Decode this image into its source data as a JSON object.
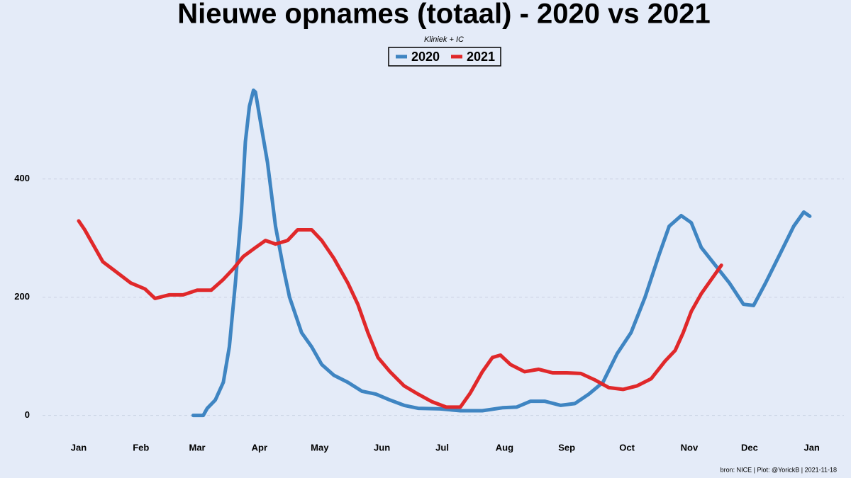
{
  "chart_data": {
    "type": "line",
    "title": "Nieuwe opnames (totaal) - 2020 vs 2021",
    "subtitle": "Kliniek + IC",
    "caption": "bron: NICE  | Plot: @YorickB |  2021-11-18",
    "series": [
      {
        "name": "2020",
        "color": "#3f85c2",
        "x": [
          58,
          63,
          65,
          69,
          73,
          76,
          79,
          82,
          84,
          86,
          88,
          89,
          92,
          95,
          99,
          103,
          106,
          112,
          117,
          122,
          128,
          135,
          142,
          149,
          156,
          163,
          170,
          181,
          191,
          202,
          212,
          219,
          226,
          233,
          241,
          248,
          255,
          262,
          269,
          276,
          283,
          290,
          295,
          301,
          306,
          311,
          318,
          325,
          332,
          337,
          343,
          350,
          357,
          362,
          365
        ],
        "values": [
          0,
          0,
          12,
          26,
          56,
          116,
          224,
          344,
          463,
          523,
          550,
          547,
          487,
          428,
          320,
          248,
          200,
          140,
          116,
          86,
          68,
          56,
          41,
          36,
          26,
          17,
          12,
          11,
          8,
          8,
          13,
          14,
          24,
          24,
          17,
          20,
          36,
          56,
          104,
          140,
          200,
          272,
          320,
          338,
          326,
          284,
          254,
          224,
          188,
          186,
          224,
          272,
          320,
          344,
          337
        ]
      },
      {
        "name": "2021",
        "color": "#e0282a",
        "x": [
          1,
          4,
          7,
          13,
          20,
          27,
          34,
          39,
          46,
          53,
          60,
          67,
          73,
          78,
          83,
          89,
          94,
          99,
          105,
          110,
          117,
          122,
          128,
          135,
          140,
          145,
          150,
          156,
          163,
          170,
          177,
          184,
          191,
          196,
          202,
          207,
          211,
          216,
          223,
          230,
          237,
          244,
          251,
          258,
          265,
          272,
          279,
          286,
          293,
          298,
          302,
          306,
          311,
          316,
          321
        ],
        "values": [
          329,
          314,
          296,
          260,
          242,
          224,
          214,
          198,
          204,
          204,
          212,
          212,
          230,
          248,
          269,
          284,
          296,
          290,
          296,
          314,
          314,
          296,
          266,
          224,
          188,
          140,
          98,
          74,
          50,
          36,
          23,
          14,
          14,
          38,
          74,
          98,
          102,
          86,
          74,
          78,
          72,
          72,
          71,
          60,
          47,
          44,
          50,
          62,
          92,
          110,
          140,
          176,
          206,
          230,
          254
        ]
      }
    ],
    "xlim": [
      -17,
      382
    ],
    "xticks": [
      {
        "value": 1,
        "label": "Jan"
      },
      {
        "value": 32,
        "label": "Feb"
      },
      {
        "value": 60,
        "label": "Mar"
      },
      {
        "value": 91,
        "label": "Apr"
      },
      {
        "value": 121,
        "label": "May"
      },
      {
        "value": 152,
        "label": "Jun"
      },
      {
        "value": 182,
        "label": "Jul"
      },
      {
        "value": 213,
        "label": "Aug"
      },
      {
        "value": 244,
        "label": "Sep"
      },
      {
        "value": 274,
        "label": "Oct"
      },
      {
        "value": 305,
        "label": "Nov"
      },
      {
        "value": 335,
        "label": "Dec"
      },
      {
        "value": 366,
        "label": "Jan"
      }
    ],
    "ylim": [
      -28,
      583
    ],
    "yticks": [
      0,
      200,
      400
    ],
    "grid": true
  }
}
